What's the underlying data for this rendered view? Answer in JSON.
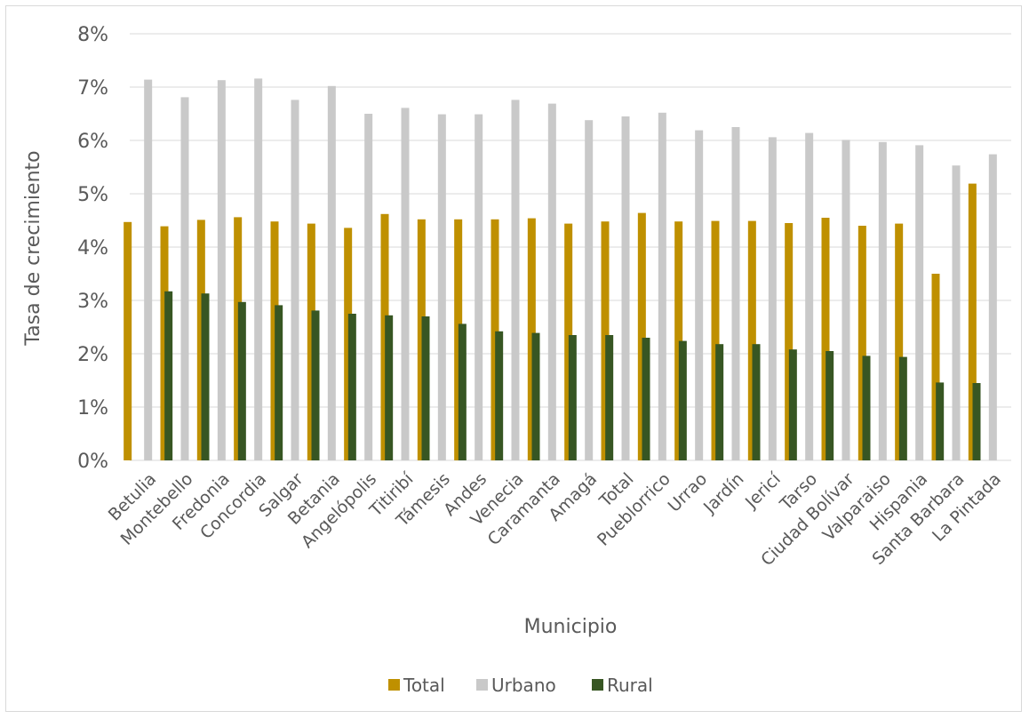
{
  "chart_data": {
    "type": "bar",
    "title": "",
    "xlabel": "Municipio",
    "ylabel": "Tasa de crecimiento",
    "ylim": [
      0,
      0.08
    ],
    "yticks": [
      "0%",
      "1%",
      "2%",
      "3%",
      "4%",
      "5%",
      "6%",
      "7%",
      "8%"
    ],
    "grid": true,
    "legend_position": "bottom",
    "categories": [
      "Betulia",
      "Montebello",
      "Fredonia",
      "Concordia",
      "Salgar",
      "Betania",
      "Angelópolis",
      "Titiribí",
      "Támesis",
      "Andes",
      "Venecia",
      "Caramanta",
      "Amagá",
      "Total",
      "Pueblorrico",
      "Urrao",
      "Jardín",
      "Jericí",
      "Tarso",
      "Ciudad Bolívar",
      "Valparaiso",
      "Hispania",
      "Santa Barbara",
      "La Pintada"
    ],
    "series": [
      {
        "name": "Total",
        "color": "#bf9000",
        "values": [
          0.0447,
          0.0439,
          0.0451,
          0.0456,
          0.0448,
          0.0444,
          0.0436,
          0.0462,
          0.0452,
          0.0452,
          0.0452,
          0.0454,
          0.0444,
          0.0448,
          0.0464,
          0.0448,
          0.0449,
          0.0449,
          0.0445,
          0.0455,
          0.044,
          0.0444,
          0.035,
          0.0519
        ]
      },
      {
        "name": "Urbano",
        "color": "#c9c9c9",
        "values": [
          0.0714,
          0.0681,
          0.0713,
          0.0716,
          0.0676,
          0.0702,
          0.065,
          0.0661,
          0.0649,
          0.0649,
          0.0676,
          0.0669,
          0.0638,
          0.0645,
          0.0652,
          0.0619,
          0.0625,
          0.0606,
          0.0614,
          0.0601,
          0.0597,
          0.0591,
          0.0553,
          0.0574
        ]
      },
      {
        "name": "Rural",
        "color": "#375623",
        "values": [
          0.0317,
          0.0313,
          0.0297,
          0.0291,
          0.0281,
          0.0275,
          0.0272,
          0.027,
          0.0256,
          0.0242,
          0.0239,
          0.0235,
          0.0235,
          0.023,
          0.0224,
          0.0218,
          0.0218,
          0.0208,
          0.0205,
          0.0196,
          0.0194,
          0.0146,
          0.0145,
          null
        ]
      }
    ]
  },
  "colors": {
    "grid": "#d9d9d9",
    "text": "#595959"
  }
}
